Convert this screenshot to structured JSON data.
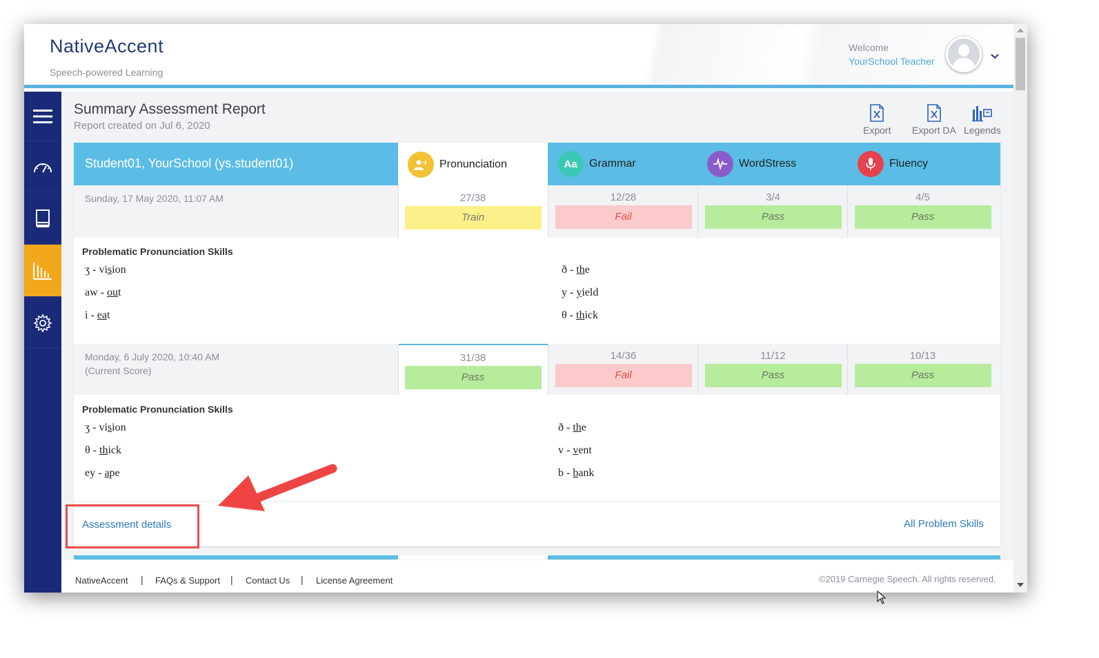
{
  "header": {
    "brand": "NativeAccent",
    "tagline": "Speech-powered Learning",
    "welcome": "Welcome",
    "user_name": "YourSchool Teacher"
  },
  "sidebar": {
    "items": [
      {
        "icon": "menu-icon"
      },
      {
        "icon": "dashboard-gauge-icon"
      },
      {
        "icon": "book-icon"
      },
      {
        "icon": "bar-chart-icon",
        "active": true
      },
      {
        "icon": "gear-icon"
      }
    ]
  },
  "report": {
    "title": "Summary Assessment Report",
    "created": "Report created on Jul 6, 2020"
  },
  "toolbar": {
    "export_label": "Export",
    "export_da_label": "Export DA",
    "legends_label": "Legends"
  },
  "student": {
    "name": "Student01, YourSchool (ys.student01)"
  },
  "categories": [
    {
      "label": "Pronunciation",
      "color": "#f2c232"
    },
    {
      "label": "Grammar",
      "icon_text": "Aa",
      "color": "#3cc8b6"
    },
    {
      "label": "WordStress",
      "color": "#8a5ccb"
    },
    {
      "label": "Fluency",
      "color": "#e8414e"
    }
  ],
  "assessments": [
    {
      "date": "Sunday, 17 May 2020, 11:07 AM",
      "note": "",
      "scores": [
        {
          "value": "27/38",
          "status": "Train"
        },
        {
          "value": "12/28",
          "status": "Fail"
        },
        {
          "value": "3/4",
          "status": "Pass"
        },
        {
          "value": "4/5",
          "status": "Pass"
        }
      ],
      "skills_title": "Problematic Pronunciation Skills",
      "skills_left": [
        {
          "symbol": "ʒ - ",
          "pre": "vi",
          "u": "s",
          "post": "ion"
        },
        {
          "symbol": "aw - ",
          "pre": "",
          "u": "ou",
          "post": "t"
        },
        {
          "symbol": "i - ",
          "pre": "",
          "u": "ea",
          "post": "t"
        }
      ],
      "skills_right": [
        {
          "symbol": "ð - ",
          "pre": "",
          "u": "th",
          "post": "e"
        },
        {
          "symbol": "y - ",
          "pre": "",
          "u": "y",
          "post": "ield"
        },
        {
          "symbol": "θ - ",
          "pre": "",
          "u": "th",
          "post": "ick"
        }
      ]
    },
    {
      "date": "Monday, 6 July 2020, 10:40 AM",
      "note": "(Current Score)",
      "scores": [
        {
          "value": "31/38",
          "status": "Pass"
        },
        {
          "value": "14/36",
          "status": "Fail"
        },
        {
          "value": "11/12",
          "status": "Pass"
        },
        {
          "value": "10/13",
          "status": "Pass"
        }
      ],
      "skills_title": "Problematic Pronunciation Skills",
      "skills_left": [
        {
          "symbol": "ʒ - ",
          "pre": "vi",
          "u": "s",
          "post": "ion"
        },
        {
          "symbol": "θ - ",
          "pre": "",
          "u": "th",
          "post": "ick"
        },
        {
          "symbol": "ey - ",
          "pre": "",
          "u": "a",
          "post": "pe"
        }
      ],
      "skills_right": [
        {
          "symbol": "ð - ",
          "pre": "",
          "u": "th",
          "post": "e"
        },
        {
          "symbol": "v - ",
          "pre": "",
          "u": "v",
          "post": "ent"
        },
        {
          "symbol": "b - ",
          "pre": "",
          "u": "b",
          "post": "ank"
        }
      ]
    }
  ],
  "links": {
    "assessment_details": "Assessment details",
    "all_problem_skills": "All Problem Skills"
  },
  "footer": {
    "links": [
      "NativeAccent",
      "FAQs & Support",
      "Contact Us",
      "License Agreement"
    ],
    "separator": "|",
    "copyright": "©2019 Carnegie Speech. All rights reserved."
  }
}
